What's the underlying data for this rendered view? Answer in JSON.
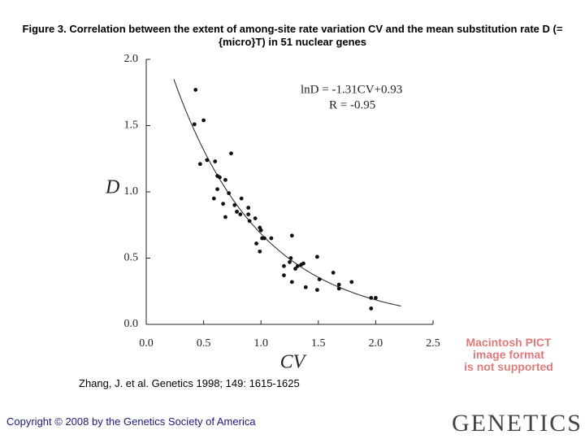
{
  "title": "Figure 3. Correlation between the extent of among-site rate variation CV and the mean substitution rate D (={micro}T) in 51 nuclear genes",
  "citation": "Zhang, J. et al. Genetics 1998; 149: 1615-1625",
  "copyright": "Copyright © 2008 by the Genetics Society of America",
  "logo": "GENETICS",
  "placeholder": [
    "Macintosh PICT",
    "image format",
    "is not supported"
  ],
  "chart_data": {
    "type": "scatter",
    "x_label": "CV",
    "y_label": "D",
    "annotations": [
      "lnD = -1.31CV+0.93",
      "R = -0.95"
    ],
    "xlim": [
      0,
      2.5
    ],
    "ylim": [
      0,
      2
    ],
    "xticks": [
      {
        "value": 0,
        "label": "0.0"
      },
      {
        "value": 0.5,
        "label": "0.5"
      },
      {
        "value": 1,
        "label": "1.0"
      },
      {
        "value": 1.5,
        "label": "1.5"
      },
      {
        "value": 2,
        "label": "2.0"
      },
      {
        "value": 2.5,
        "label": "2.5"
      }
    ],
    "yticks": [
      {
        "value": 0,
        "label": "0.0"
      },
      {
        "value": 0.5,
        "label": "0.5"
      },
      {
        "value": 1,
        "label": "1.0"
      },
      {
        "value": 1.5,
        "label": "1.5"
      },
      {
        "value": 2,
        "label": "2.0"
      }
    ],
    "color": "#111111",
    "x": [
      0.43,
      0.42,
      0.5,
      0.47,
      0.53,
      0.6,
      0.74,
      0.62,
      0.64,
      0.69,
      0.62,
      0.59,
      0.72,
      0.67,
      0.77,
      0.83,
      0.79,
      0.82,
      0.89,
      0.89,
      0.69,
      0.9,
      0.95,
      0.99,
      1.0,
      0.96,
      0.99,
      1.01,
      1.03,
      1.09,
      1.27,
      1.26,
      1.25,
      1.2,
      1.2,
      1.3,
      1.32,
      1.35,
      1.37,
      1.27,
      1.39,
      1.49,
      1.51,
      1.49,
      1.63,
      1.68,
      1.79,
      1.68,
      1.96,
      2.0,
      1.96
    ],
    "values": [
      1.77,
      1.51,
      1.54,
      1.21,
      1.24,
      1.23,
      1.29,
      1.12,
      1.11,
      1.09,
      1.02,
      0.95,
      0.99,
      0.91,
      0.9,
      0.95,
      0.85,
      0.83,
      0.88,
      0.83,
      0.81,
      0.78,
      0.8,
      0.73,
      0.71,
      0.61,
      0.55,
      0.65,
      0.65,
      0.65,
      0.67,
      0.5,
      0.47,
      0.44,
      0.37,
      0.42,
      0.44,
      0.45,
      0.46,
      0.32,
      0.28,
      0.51,
      0.34,
      0.26,
      0.39,
      0.3,
      0.32,
      0.27,
      0.2,
      0.2,
      0.12
    ],
    "fit": {
      "slope": -1.31,
      "intercept": 0.93,
      "x_range": [
        0.24,
        2.22
      ]
    }
  }
}
